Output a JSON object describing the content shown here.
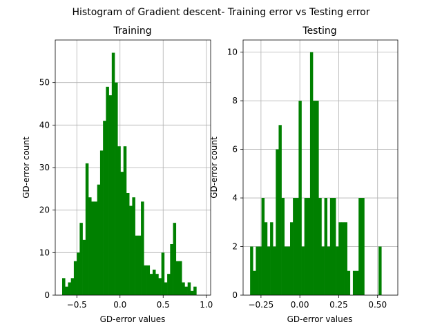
{
  "figure": {
    "title": "Histogram of Gradient descent- Training error vs Testing error"
  },
  "chart_data": [
    {
      "type": "bar",
      "title": "Training",
      "xlabel": "GD-error values",
      "ylabel": "GD-error count",
      "xlim": [
        -0.75,
        1.05
      ],
      "ylim": [
        0,
        60
      ],
      "xticks": [
        -0.5,
        0.0,
        0.5,
        1.0
      ],
      "xtick_labels": [
        "−0.5",
        "0.0",
        "0.5",
        "1.0"
      ],
      "yticks": [
        0,
        10,
        20,
        30,
        40,
        50
      ],
      "ytick_labels": [
        "0",
        "10",
        "20",
        "30",
        "40",
        "50"
      ],
      "grid": true,
      "bar_color": "#008000",
      "bin_start": -0.67,
      "bin_width": 0.0338,
      "values": [
        4,
        2,
        3,
        4,
        8,
        10,
        17,
        13,
        31,
        23,
        22,
        22,
        26,
        34,
        41,
        49,
        47,
        57,
        50,
        35,
        29,
        35,
        24,
        21,
        23,
        14,
        14,
        22,
        7,
        7,
        5,
        6,
        5,
        4,
        10,
        3,
        5,
        12,
        17,
        8,
        8,
        3,
        2,
        3,
        1,
        2
      ]
    },
    {
      "type": "bar",
      "title": "Testing",
      "xlabel": "GD-error values",
      "ylabel": "GD-error count",
      "xlim": [
        -0.365,
        0.63
      ],
      "ylim": [
        0,
        10.5
      ],
      "xticks": [
        -0.25,
        0.0,
        0.25,
        0.5
      ],
      "xtick_labels": [
        "−0.25",
        "0.00",
        "0.25",
        "0.50"
      ],
      "yticks": [
        0,
        2,
        4,
        6,
        8,
        10
      ],
      "ytick_labels": [
        "0",
        "2",
        "4",
        "6",
        "8",
        "10"
      ],
      "grid": true,
      "bar_color": "#008000",
      "bin_start": -0.32,
      "bin_width": 0.01836,
      "values": [
        2,
        1,
        2,
        2,
        4,
        3,
        2,
        3,
        2,
        6,
        7,
        4,
        2,
        2,
        3,
        4,
        4,
        8,
        2,
        4,
        4,
        10,
        8,
        8,
        4,
        2,
        4,
        2,
        4,
        4,
        2,
        3,
        3,
        3,
        1,
        0,
        1,
        1,
        4,
        4,
        0,
        0,
        0,
        0,
        0,
        2
      ]
    }
  ]
}
